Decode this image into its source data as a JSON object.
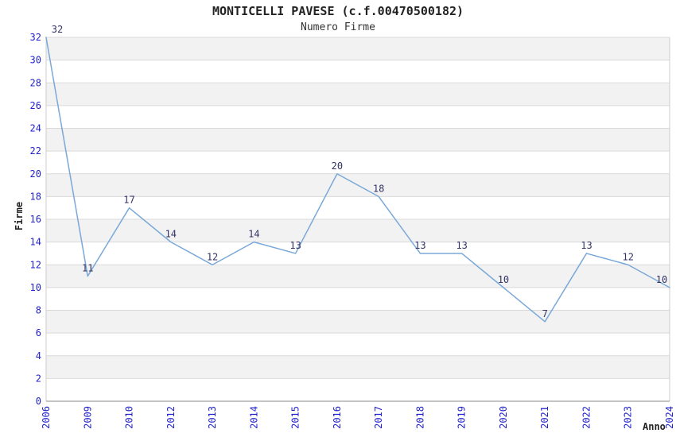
{
  "chart_data": {
    "type": "line",
    "title": "MONTICELLI PAVESE (c.f.00470500182)",
    "subtitle": "Numero Firme",
    "xlabel": "Anno",
    "ylabel": "Firme",
    "categories": [
      "2006",
      "2009",
      "2010",
      "2012",
      "2013",
      "2014",
      "2015",
      "2016",
      "2017",
      "2018",
      "2019",
      "2020",
      "2021",
      "2022",
      "2023",
      "2024"
    ],
    "values": [
      32,
      11,
      17,
      14,
      12,
      14,
      13,
      20,
      18,
      13,
      13,
      10,
      7,
      13,
      12,
      10
    ],
    "ylim": [
      0,
      32
    ],
    "ytick_step": 2,
    "grid": "horizontal-bands-alternating",
    "legend": "none",
    "point_labels_visible": true,
    "colors": {
      "line": "#7aa8d8",
      "band_gray": "#f2f2f2",
      "band_white": "#ffffff",
      "grid_line": "#d9d9d9",
      "axis_bottom": "#888888",
      "axis_side": "#cccccc",
      "tick_label": "#2222cc",
      "value_label": "#333366",
      "title_text": "#222222"
    }
  }
}
